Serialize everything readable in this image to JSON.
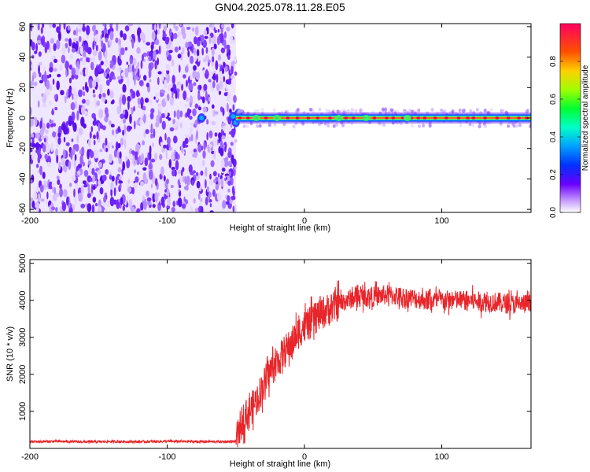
{
  "figure": {
    "title": "GN04.2025.078.11.28.E05"
  },
  "chart_data": [
    {
      "type": "heatmap",
      "title": "GN04.2025.078.11.28.E05",
      "xlabel": "Height of straight line (km)",
      "ylabel": "Frequency (Hz)",
      "xlim": [
        -200,
        165
      ],
      "ylim": [
        -62,
        62
      ],
      "x_ticks": [
        -200,
        -100,
        0,
        100
      ],
      "y_ticks": [
        -60,
        -40,
        -20,
        0,
        20,
        40,
        60
      ],
      "grid": false,
      "colorbar": {
        "label": "Normalized spectral amplitude",
        "range": [
          0,
          1
        ],
        "ticks": [
          "0.0",
          "0.2",
          "0.4",
          "0.6",
          "0.8"
        ]
      },
      "description_regions": {
        "noise_region_x": [
          -200,
          -50
        ],
        "signal_line_frequency_hz": 0,
        "signal_line_x": [
          -50,
          165
        ]
      }
    },
    {
      "type": "line",
      "xlabel": "Height of straight line (km)",
      "ylabel": "SNR (10 * v/v)",
      "xlim": [
        -200,
        165
      ],
      "ylim": [
        0,
        5100
      ],
      "x_ticks": [
        -200,
        -100,
        0,
        100
      ],
      "y_ticks": [
        1000,
        2000,
        3000,
        4000,
        5000
      ],
      "grid": false,
      "series_color": "#e8252a",
      "series": [
        {
          "x": [
            -200,
            -180,
            -160,
            -140,
            -120,
            -100,
            -80,
            -60,
            -50,
            -45,
            -40,
            -35,
            -30,
            -25,
            -20,
            -15,
            -10,
            -5,
            0,
            5,
            10,
            15,
            20,
            25,
            30,
            35,
            40,
            50,
            60,
            70,
            80,
            90,
            100,
            110,
            120,
            130,
            140,
            150,
            165
          ],
          "values": [
            180,
            190,
            175,
            185,
            180,
            190,
            185,
            180,
            185,
            800,
            1000,
            1300,
            1700,
            2100,
            2300,
            2600,
            2800,
            3100,
            3300,
            3400,
            3600,
            3700,
            3800,
            3900,
            4000,
            4050,
            4100,
            4100,
            4150,
            4100,
            4050,
            4000,
            4000,
            4000,
            4000,
            3950,
            3950,
            3900,
            3900
          ]
        }
      ]
    }
  ]
}
